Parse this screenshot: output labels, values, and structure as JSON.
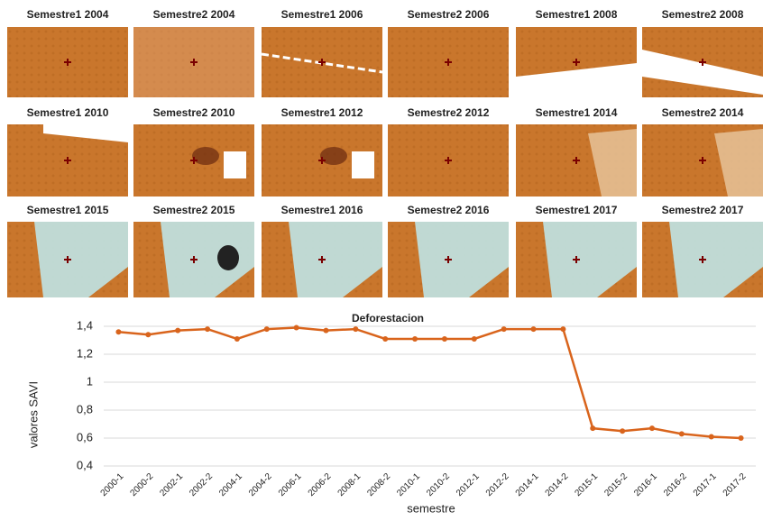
{
  "panels": [
    "Semestre1 2004",
    "Semestre2 2004",
    "Semestre1 2006",
    "Semestre2 2006",
    "Semestre1 2008",
    "Semestre2 2008",
    "Semestre1 2010",
    "Semestre2 2010",
    "Semestre1 2012",
    "Semestre2 2012",
    "Semestre1 2014",
    "Semestre2 2014",
    "Semestre1 2015",
    "Semestre2 2015",
    "Semestre1 2016",
    "Semestre2 2016",
    "Semestre1 2017",
    "Semestre2 2017"
  ],
  "chart_data": {
    "type": "line",
    "title": "Deforestacion",
    "y_label": "valores SAVI",
    "x_label": "semestre",
    "categories": [
      "2000-1",
      "2000-2",
      "2002-1",
      "2002-2",
      "2004-1",
      "2004-2",
      "2006-1",
      "2006-2",
      "2008-1",
      "2008-2",
      "2010-1",
      "2010-2",
      "2012-1",
      "2012-2",
      "2014-1",
      "2014-2",
      "2015-1",
      "2015-2",
      "2016-1",
      "2016-2",
      "2017-1",
      "2017-2"
    ],
    "values": [
      1.36,
      1.34,
      1.37,
      1.38,
      1.31,
      1.38,
      1.39,
      1.37,
      1.38,
      1.31,
      1.31,
      1.31,
      1.31,
      1.38,
      1.38,
      1.38,
      0.67,
      0.65,
      0.67,
      0.63,
      0.61,
      0.6
    ],
    "color": "#d9641c",
    "ylim": [
      0.4,
      1.4
    ],
    "yticks": [
      {
        "value": 0.4,
        "label": "0,4"
      },
      {
        "value": 0.6,
        "label": "0,6"
      },
      {
        "value": 0.8,
        "label": "0,8"
      },
      1,
      {
        "value": 1.2,
        "label": "1,2"
      },
      {
        "value": 1.4,
        "label": "1,4"
      }
    ],
    "grid": true
  }
}
